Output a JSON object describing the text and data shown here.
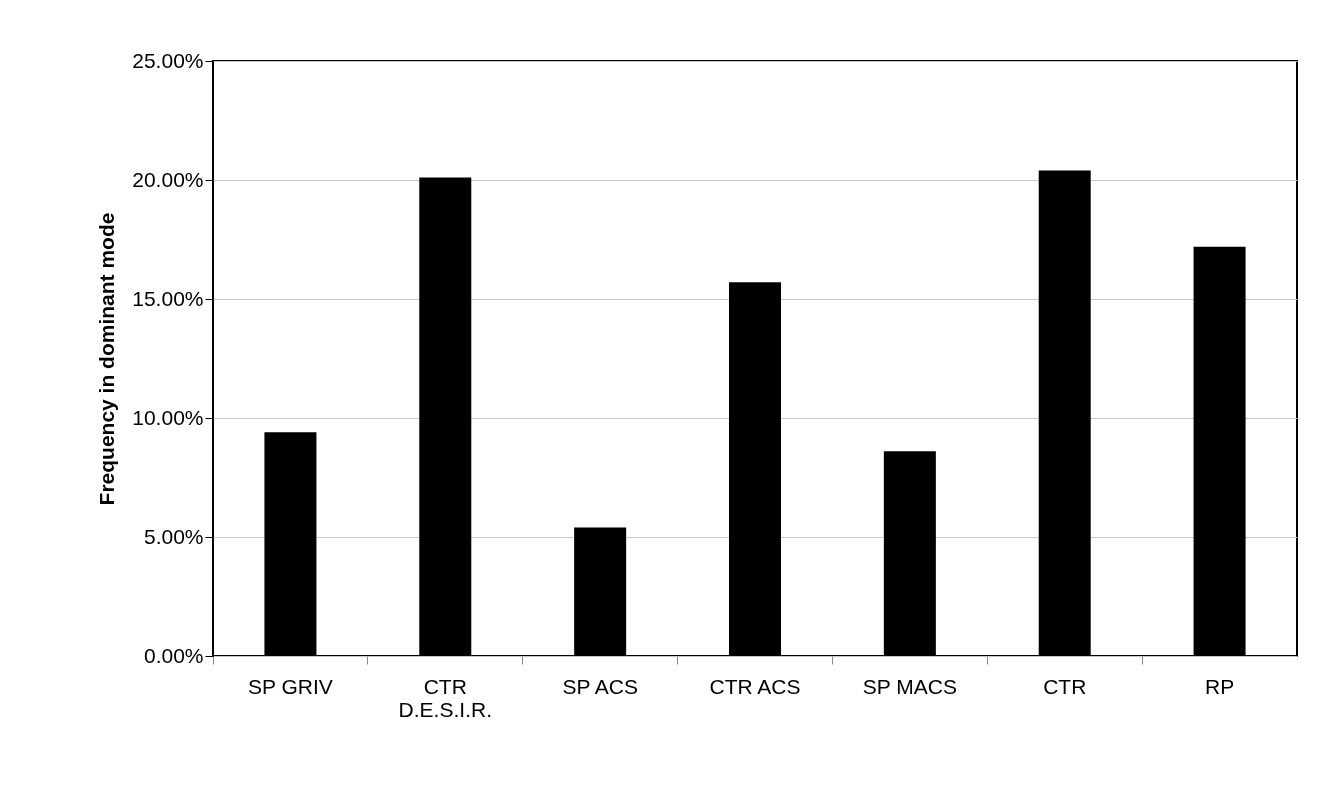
{
  "chart_data": {
    "type": "bar",
    "ylabel": "Frequency in dominant mode",
    "categories": [
      "SP GRIV",
      "CTR\nD.E.S.I.R.",
      "SP ACS",
      "CTR ACS",
      "SP MACS",
      "CTR",
      "RP"
    ],
    "values": [
      9.4,
      20.1,
      5.4,
      15.7,
      8.6,
      20.4,
      17.2
    ],
    "color": "#000000",
    "ylim": [
      0,
      25
    ],
    "yticks": [
      {
        "value": 0,
        "label": "0.00%"
      },
      {
        "value": 5,
        "label": "5.00%"
      },
      {
        "value": 10,
        "label": "10.00%"
      },
      {
        "value": 15,
        "label": "15.00%"
      },
      {
        "value": 20,
        "label": "20.00%"
      },
      {
        "value": 25,
        "label": "25.00%"
      }
    ],
    "grid": "y"
  }
}
